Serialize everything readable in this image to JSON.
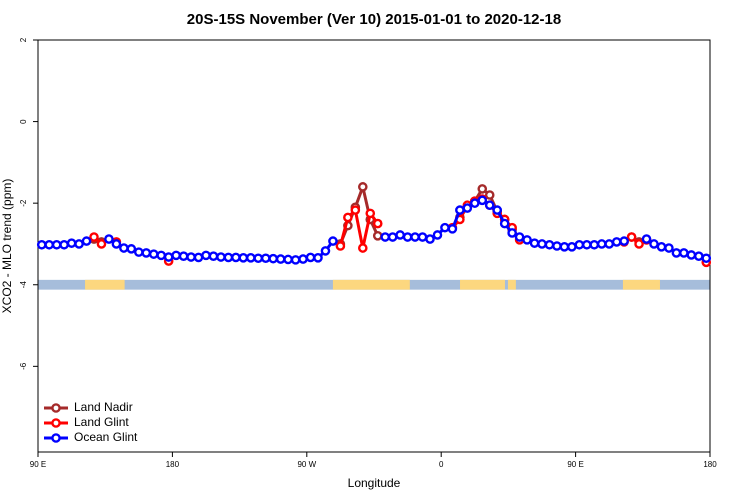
{
  "chart_data": {
    "type": "line",
    "title": "20S-15S November (Ver 10)   2015-01-01 to 2020-12-18",
    "x_label": "Longitude",
    "y_label": "XCO2 - MLO trend (ppm)",
    "xlim": [
      90,
      540
    ],
    "ylim": [
      -8.1,
      2
    ],
    "xticks": [
      {
        "value": 90,
        "label": "90 E"
      },
      180,
      {
        "value": 270,
        "label": "90 W"
      },
      {
        "value": 360,
        "label": "0"
      },
      {
        "value": 450,
        "label": "90 E"
      },
      180
    ],
    "yticks": [
      2,
      0,
      -2,
      -4,
      -6
    ],
    "legend": "bottom-left",
    "land_mask": {
      "y": [
        -4.12,
        -3.88
      ],
      "ocean_color": "#a6bddb",
      "land_color": "#fcd77f",
      "land_x": [
        [
          121.5,
          148
        ],
        [
          287.5,
          339
        ],
        [
          372.6,
          402.7
        ],
        [
          404.7,
          410
        ],
        [
          481.7,
          506.5
        ]
      ]
    },
    "x": [
      92.5,
      97.5,
      102.5,
      107.5,
      112.5,
      117.5,
      122.5,
      127.5,
      132.5,
      137.5,
      142.5,
      147.5,
      152.5,
      157.5,
      162.5,
      167.5,
      172.5,
      177.5,
      182.5,
      187.5,
      192.5,
      197.5,
      202.5,
      207.5,
      212.5,
      217.5,
      222.5,
      227.5,
      232.5,
      237.5,
      242.5,
      247.5,
      252.5,
      257.5,
      262.5,
      267.5,
      272.5,
      277.5,
      282.5,
      287.5,
      292.5,
      297.5,
      302.5,
      307.5,
      312.5,
      317.5,
      322.5,
      327.5,
      332.5,
      337.5,
      342.5,
      347.5,
      352.5,
      357.5,
      362.5,
      367.5,
      372.5,
      377.5,
      382.5,
      387.5,
      392.5,
      397.5,
      402.5,
      407.5,
      412.5,
      417.5,
      422.5,
      427.5,
      432.5,
      437.5,
      442.5,
      447.5,
      452.5,
      457.5,
      462.5,
      467.5,
      472.5,
      477.5,
      482.5,
      487.5,
      492.5,
      497.5,
      502.5,
      507.5,
      512.5,
      517.5,
      522.5,
      527.5,
      532.5,
      537.5
    ],
    "series": [
      {
        "name": "Land Nadir",
        "color": "#a52a2a",
        "values": [
          null,
          null,
          null,
          null,
          null,
          null,
          null,
          -2.88,
          -2.95,
          null,
          null,
          null,
          null,
          null,
          null,
          null,
          null,
          null,
          null,
          null,
          null,
          null,
          null,
          null,
          null,
          null,
          null,
          null,
          null,
          null,
          null,
          null,
          null,
          null,
          null,
          null,
          null,
          null,
          null,
          null,
          -3.0,
          -2.55,
          -2.1,
          -1.6,
          -2.4,
          -2.8,
          null,
          null,
          null,
          null,
          null,
          null,
          null,
          null,
          null,
          null,
          -2.35,
          -2.1,
          -1.95,
          -1.65,
          -1.8,
          -2.2,
          -2.4,
          -2.65,
          -2.85,
          null,
          null,
          null,
          null,
          null,
          null,
          null,
          null,
          null,
          null,
          null,
          null,
          null,
          null,
          -2.83,
          -2.95,
          -2.9,
          null,
          null,
          null,
          null,
          null,
          null,
          null,
          null
        ]
      },
      {
        "name": "Land Glint",
        "color": "#ff0000",
        "values": [
          null,
          null,
          null,
          null,
          null,
          null,
          null,
          -2.83,
          -3.0,
          null,
          -2.95,
          null,
          null,
          null,
          null,
          null,
          null,
          -3.42,
          null,
          null,
          null,
          null,
          null,
          null,
          null,
          null,
          null,
          null,
          null,
          null,
          null,
          null,
          null,
          null,
          null,
          null,
          null,
          null,
          null,
          null,
          -3.05,
          -2.35,
          -2.17,
          -3.1,
          -2.25,
          -2.5,
          null,
          null,
          null,
          null,
          null,
          null,
          null,
          null,
          null,
          -2.6,
          -2.4,
          -2.05,
          -1.95,
          -1.9,
          -2.05,
          -2.25,
          -2.4,
          -2.6,
          -2.9,
          null,
          null,
          null,
          null,
          null,
          null,
          null,
          null,
          null,
          null,
          null,
          null,
          null,
          -2.95,
          -2.83,
          -3.0,
          -2.9,
          null,
          null,
          null,
          null,
          null,
          null,
          null,
          -3.45
        ]
      },
      {
        "name": "Ocean Glint",
        "color": "#0000ff",
        "values": [
          -3.02,
          -3.02,
          -3.02,
          -3.02,
          -2.98,
          -3.0,
          -2.93,
          null,
          null,
          -2.88,
          -3.0,
          -3.1,
          -3.12,
          -3.2,
          -3.22,
          -3.25,
          -3.28,
          -3.32,
          -3.28,
          -3.3,
          -3.32,
          -3.33,
          -3.28,
          -3.3,
          -3.32,
          -3.33,
          -3.33,
          -3.34,
          -3.34,
          -3.35,
          -3.35,
          -3.36,
          -3.37,
          -3.38,
          -3.39,
          -3.37,
          -3.33,
          -3.34,
          -3.17,
          -2.93,
          null,
          null,
          null,
          null,
          null,
          null,
          -2.83,
          -2.83,
          -2.78,
          -2.83,
          -2.83,
          -2.83,
          -2.88,
          -2.78,
          -2.6,
          -2.63,
          -2.17,
          -2.12,
          -2.0,
          -1.93,
          -2.05,
          -2.17,
          -2.5,
          -2.73,
          -2.83,
          -2.9,
          -2.98,
          -3.0,
          -3.02,
          -3.05,
          -3.07,
          -3.07,
          -3.02,
          -3.02,
          -3.02,
          -3.0,
          -3.0,
          -2.95,
          -2.93,
          null,
          null,
          -2.88,
          -3.0,
          -3.07,
          -3.1,
          -3.22,
          -3.22,
          -3.27,
          -3.3,
          -3.35
        ]
      }
    ]
  }
}
